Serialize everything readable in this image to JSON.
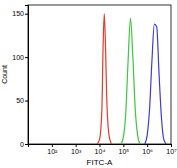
{
  "chart_data": {
    "type": "line",
    "x_label": "FITC-A",
    "y_label": "Count",
    "log": "x",
    "grid": false,
    "xlim": [
      10,
      10000000
    ],
    "xticks": [
      {
        "value": 100,
        "label": "10²"
      },
      {
        "value": 1000,
        "label": "10³"
      },
      {
        "value": 10000,
        "label": "10⁴"
      },
      {
        "value": 100000,
        "label": "10⁵"
      },
      {
        "value": 1000000,
        "label": "10⁶"
      },
      {
        "value": 10000000,
        "label": "10⁷"
      }
    ],
    "ylim": [
      0,
      160
    ],
    "yticks": [
      0,
      50,
      100,
      150
    ],
    "series": [
      {
        "color": "#e8392b",
        "x": [
          7900,
          10000,
          12600,
          14100,
          15800,
          17800,
          20000,
          25100,
          31600
        ],
        "values": [
          0,
          5,
          40,
          110,
          150,
          115,
          55,
          10,
          0
        ]
      },
      {
        "color": "#3ec63e",
        "x": [
          79400,
          100000,
          126000,
          158000,
          200000,
          251000,
          316000,
          398000,
          501000
        ],
        "values": [
          0,
          8,
          35,
          95,
          145,
          100,
          40,
          10,
          0
        ]
      },
      {
        "color": "#3b3bd6",
        "x": [
          794000,
          1000000,
          1260000,
          1580000,
          2000000,
          2510000,
          3160000,
          3980000,
          5010000,
          6310000
        ],
        "values": [
          0,
          10,
          40,
          95,
          138,
          135,
          80,
          30,
          5,
          0
        ]
      }
    ]
  }
}
